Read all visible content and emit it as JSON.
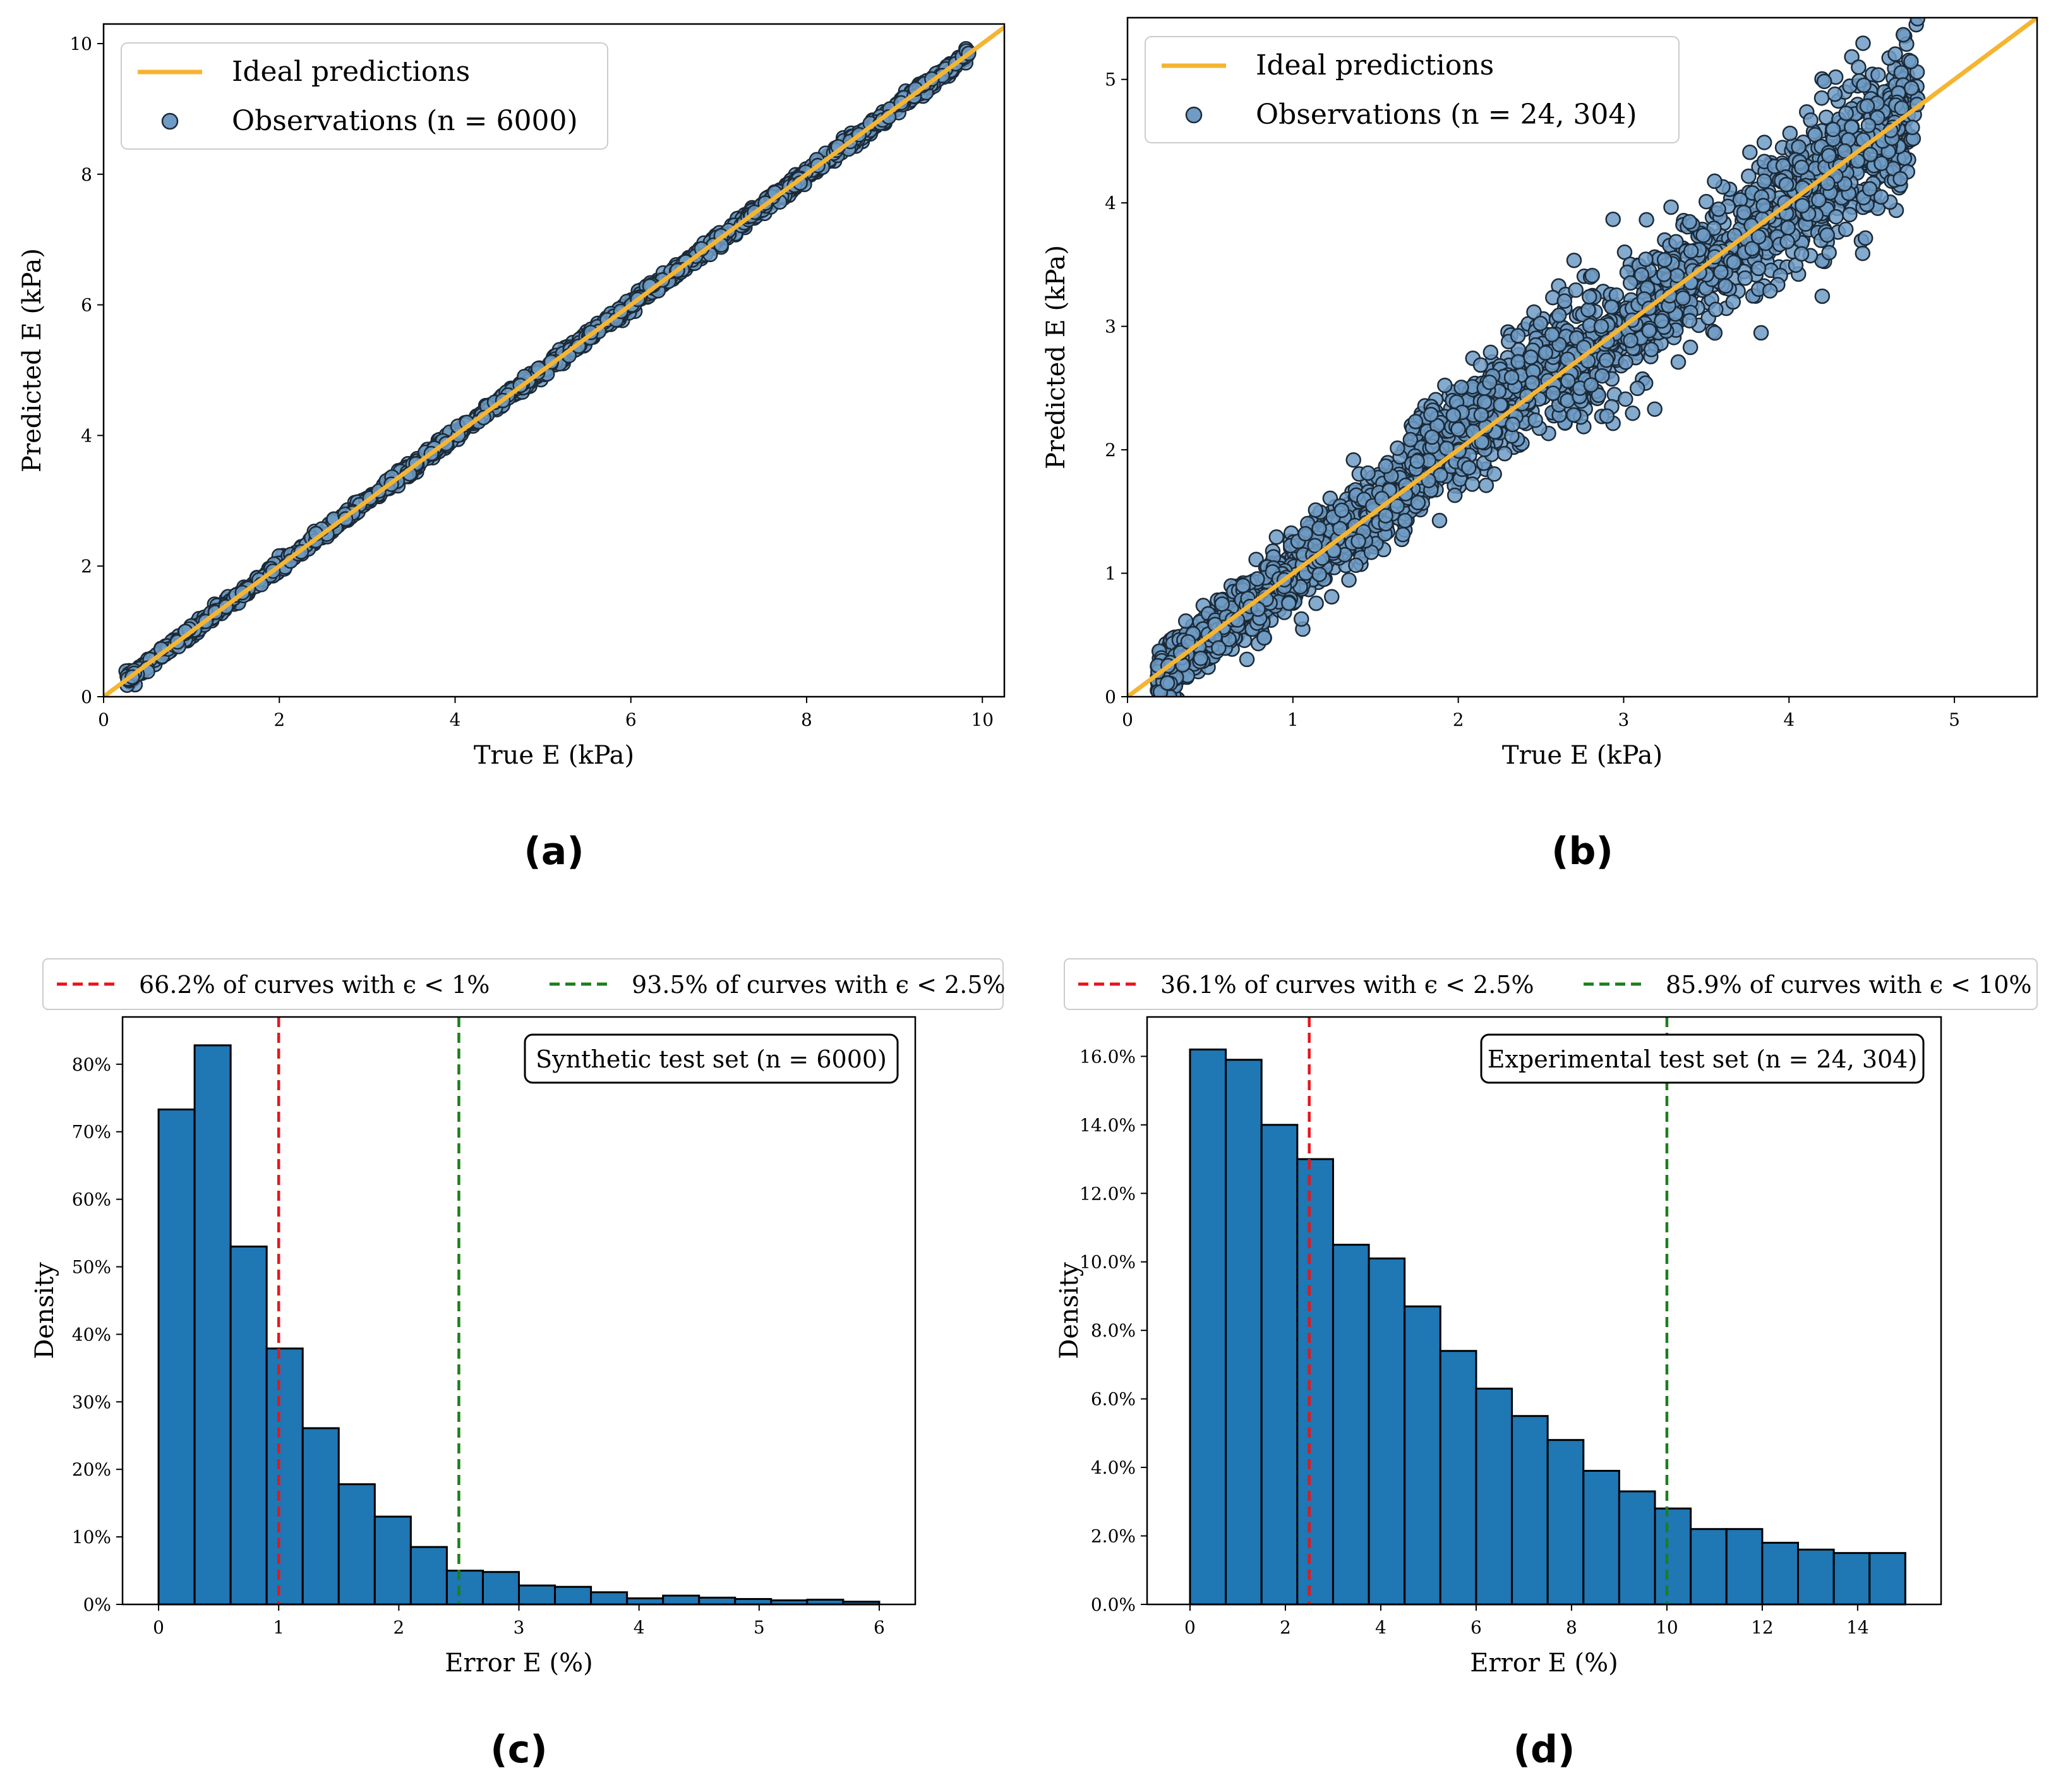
{
  "chart_data": [
    {
      "id": "a",
      "type": "scatter",
      "panel_label": "(a)",
      "xlabel": "True E (kPa)",
      "ylabel": "Predicted E (kPa)",
      "xlim": [
        0,
        10.25
      ],
      "ylim": [
        0,
        10.3
      ],
      "xticks": [
        "0",
        "2",
        "4",
        "6",
        "8",
        "10"
      ],
      "yticks": [
        "0",
        "2",
        "4",
        "6",
        "8",
        "10"
      ],
      "grid": false,
      "legend_position": "top-left",
      "series": [
        {
          "name": "Ideal predictions",
          "kind": "line",
          "color": "#f5b431",
          "x": [
            0,
            10.25
          ],
          "y": [
            0,
            10.25
          ]
        },
        {
          "name": "Observations (n = 6000)",
          "kind": "scatter",
          "color": "#6f9bc4",
          "x_range": [
            0.25,
            9.85
          ],
          "spread": 0.05
        }
      ]
    },
    {
      "id": "b",
      "type": "scatter",
      "panel_label": "(b)",
      "xlabel": "True E (kPa)",
      "ylabel": "Predicted E (kPa)",
      "xlim": [
        0,
        5.5
      ],
      "ylim": [
        0,
        5.5
      ],
      "xticks": [
        "0",
        "1",
        "2",
        "3",
        "4",
        "5"
      ],
      "yticks": [
        "0",
        "1",
        "2",
        "3",
        "4",
        "5"
      ],
      "grid": false,
      "legend_position": "top-left",
      "series": [
        {
          "name": "Ideal predictions",
          "kind": "line",
          "color": "#f5b431",
          "x": [
            0,
            5.5
          ],
          "y": [
            0,
            5.5
          ]
        },
        {
          "name": "Observations (n = 24, 304)",
          "kind": "scatter",
          "color": "#6f9bc4",
          "x_range": [
            0.18,
            4.78
          ],
          "spread": 0.28
        }
      ]
    },
    {
      "id": "c",
      "type": "bar",
      "panel_label": "(c)",
      "xlabel": "Error E (%)",
      "ylabel": "Density",
      "xlim": [
        -0.3,
        6.3
      ],
      "ylim": [
        0,
        0.87
      ],
      "xticks": [
        "0",
        "1",
        "2",
        "3",
        "4",
        "5",
        "6"
      ],
      "yticks": [
        "0%",
        "10%",
        "20%",
        "30%",
        "40%",
        "50%",
        "60%",
        "70%",
        "80%"
      ],
      "grid": false,
      "bin_width": 0.3,
      "bin_start": 0,
      "values": [
        0.733,
        0.828,
        0.53,
        0.379,
        0.261,
        0.178,
        0.13,
        0.085,
        0.05,
        0.048,
        0.028,
        0.026,
        0.018,
        0.009,
        0.013,
        0.01,
        0.008,
        0.006,
        0.007,
        0.004
      ],
      "bar_color": "#1f77b4",
      "legend_position": "above plot",
      "legend": [
        {
          "label": "66.2% of curves with ϵ < 1%",
          "color": "#e8151b",
          "x": 1.0
        },
        {
          "label": "93.5% of curves with ϵ < 2.5%",
          "color": "#1c7f1c",
          "x": 2.5
        }
      ],
      "annotation": "Synthetic test set (n = 6000)"
    },
    {
      "id": "d",
      "type": "bar",
      "panel_label": "(d)",
      "xlabel": "Error E (%)",
      "ylabel": "Density",
      "xlim": [
        -0.9,
        15.75
      ],
      "ylim": [
        0,
        0.1715
      ],
      "xticks": [
        "0",
        "2",
        "4",
        "6",
        "8",
        "10",
        "12",
        "14"
      ],
      "yticks": [
        "0.0%",
        "2.0%",
        "4.0%",
        "6.0%",
        "8.0%",
        "10.0%",
        "12.0%",
        "14.0%",
        "16.0%"
      ],
      "grid": false,
      "bin_width": 0.75,
      "bin_start": 0,
      "values": [
        0.162,
        0.159,
        0.14,
        0.13,
        0.105,
        0.101,
        0.087,
        0.074,
        0.063,
        0.055,
        0.048,
        0.039,
        0.033,
        0.028,
        0.022,
        0.022,
        0.018,
        0.016,
        0.015,
        0.015
      ],
      "bar_color": "#1f77b4",
      "legend_position": "above plot",
      "legend": [
        {
          "label": "36.1% of curves with ϵ < 2.5%",
          "color": "#e8151b",
          "x": 2.5
        },
        {
          "label": "85.9% of curves with ϵ < 10%",
          "color": "#1c7f1c",
          "x": 10.0
        }
      ],
      "annotation": "Experimental test set (n = 24, 304)"
    }
  ]
}
